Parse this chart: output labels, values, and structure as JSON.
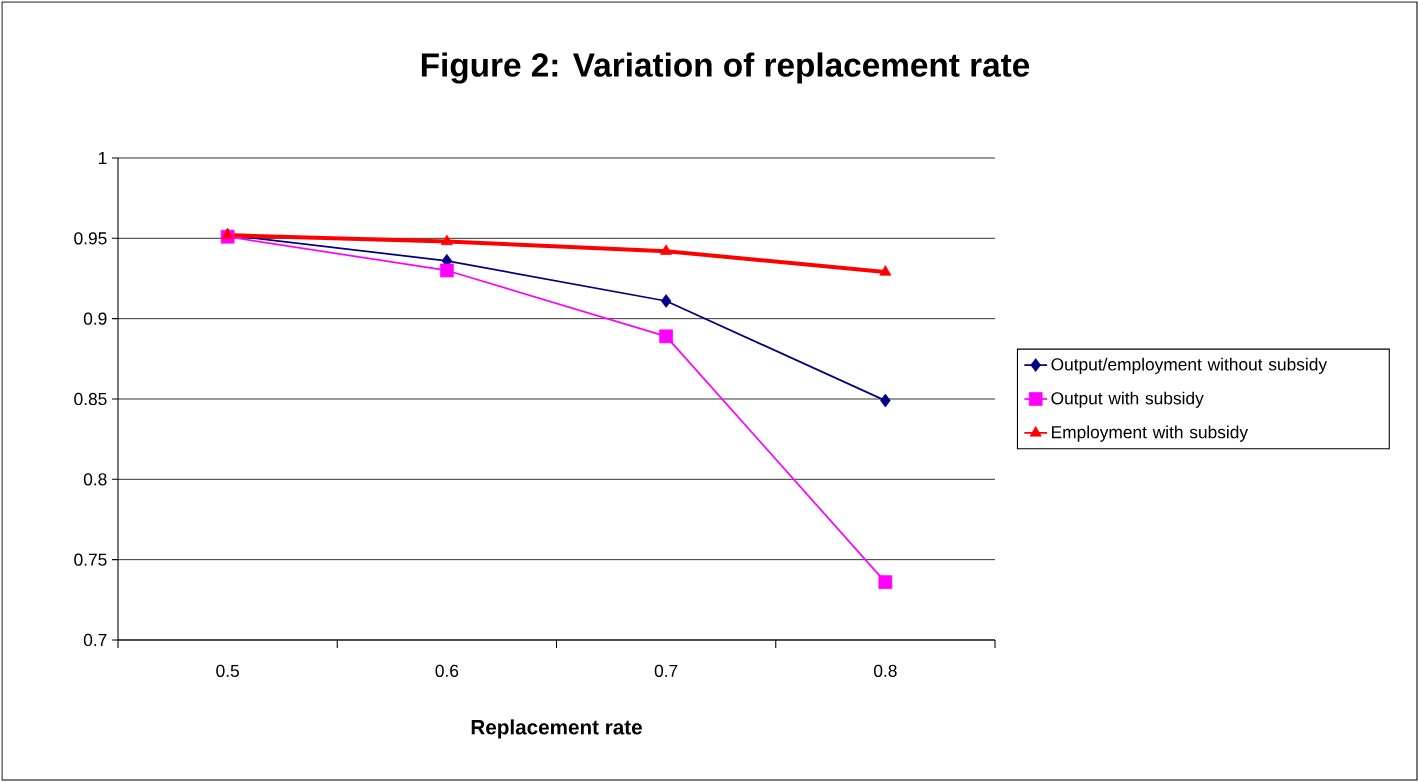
{
  "chart_data": {
    "type": "line",
    "title": "Figure 2: Variation of replacement rate",
    "xlabel": "Replacement rate",
    "categories": [
      "0.5",
      "0.6",
      "0.7",
      "0.8"
    ],
    "series": [
      {
        "name": "Output/employment without subsidy",
        "color": "#000080",
        "marker": "diamond",
        "values": [
          0.952,
          0.936,
          0.911,
          0.849
        ]
      },
      {
        "name": "Output with subsidy",
        "color": "#ff00ff",
        "marker": "square",
        "values": [
          0.951,
          0.93,
          0.889,
          0.736
        ]
      },
      {
        "name": "Employment with subsidy",
        "color": "#ff0000",
        "marker": "triangle",
        "values": [
          0.952,
          0.948,
          0.942,
          0.929
        ]
      }
    ],
    "ylim": [
      0.7,
      1
    ],
    "yticks": [
      0.7,
      0.75,
      0.8,
      0.85,
      0.9,
      0.95,
      1
    ],
    "grid": "y",
    "legend": "right"
  }
}
